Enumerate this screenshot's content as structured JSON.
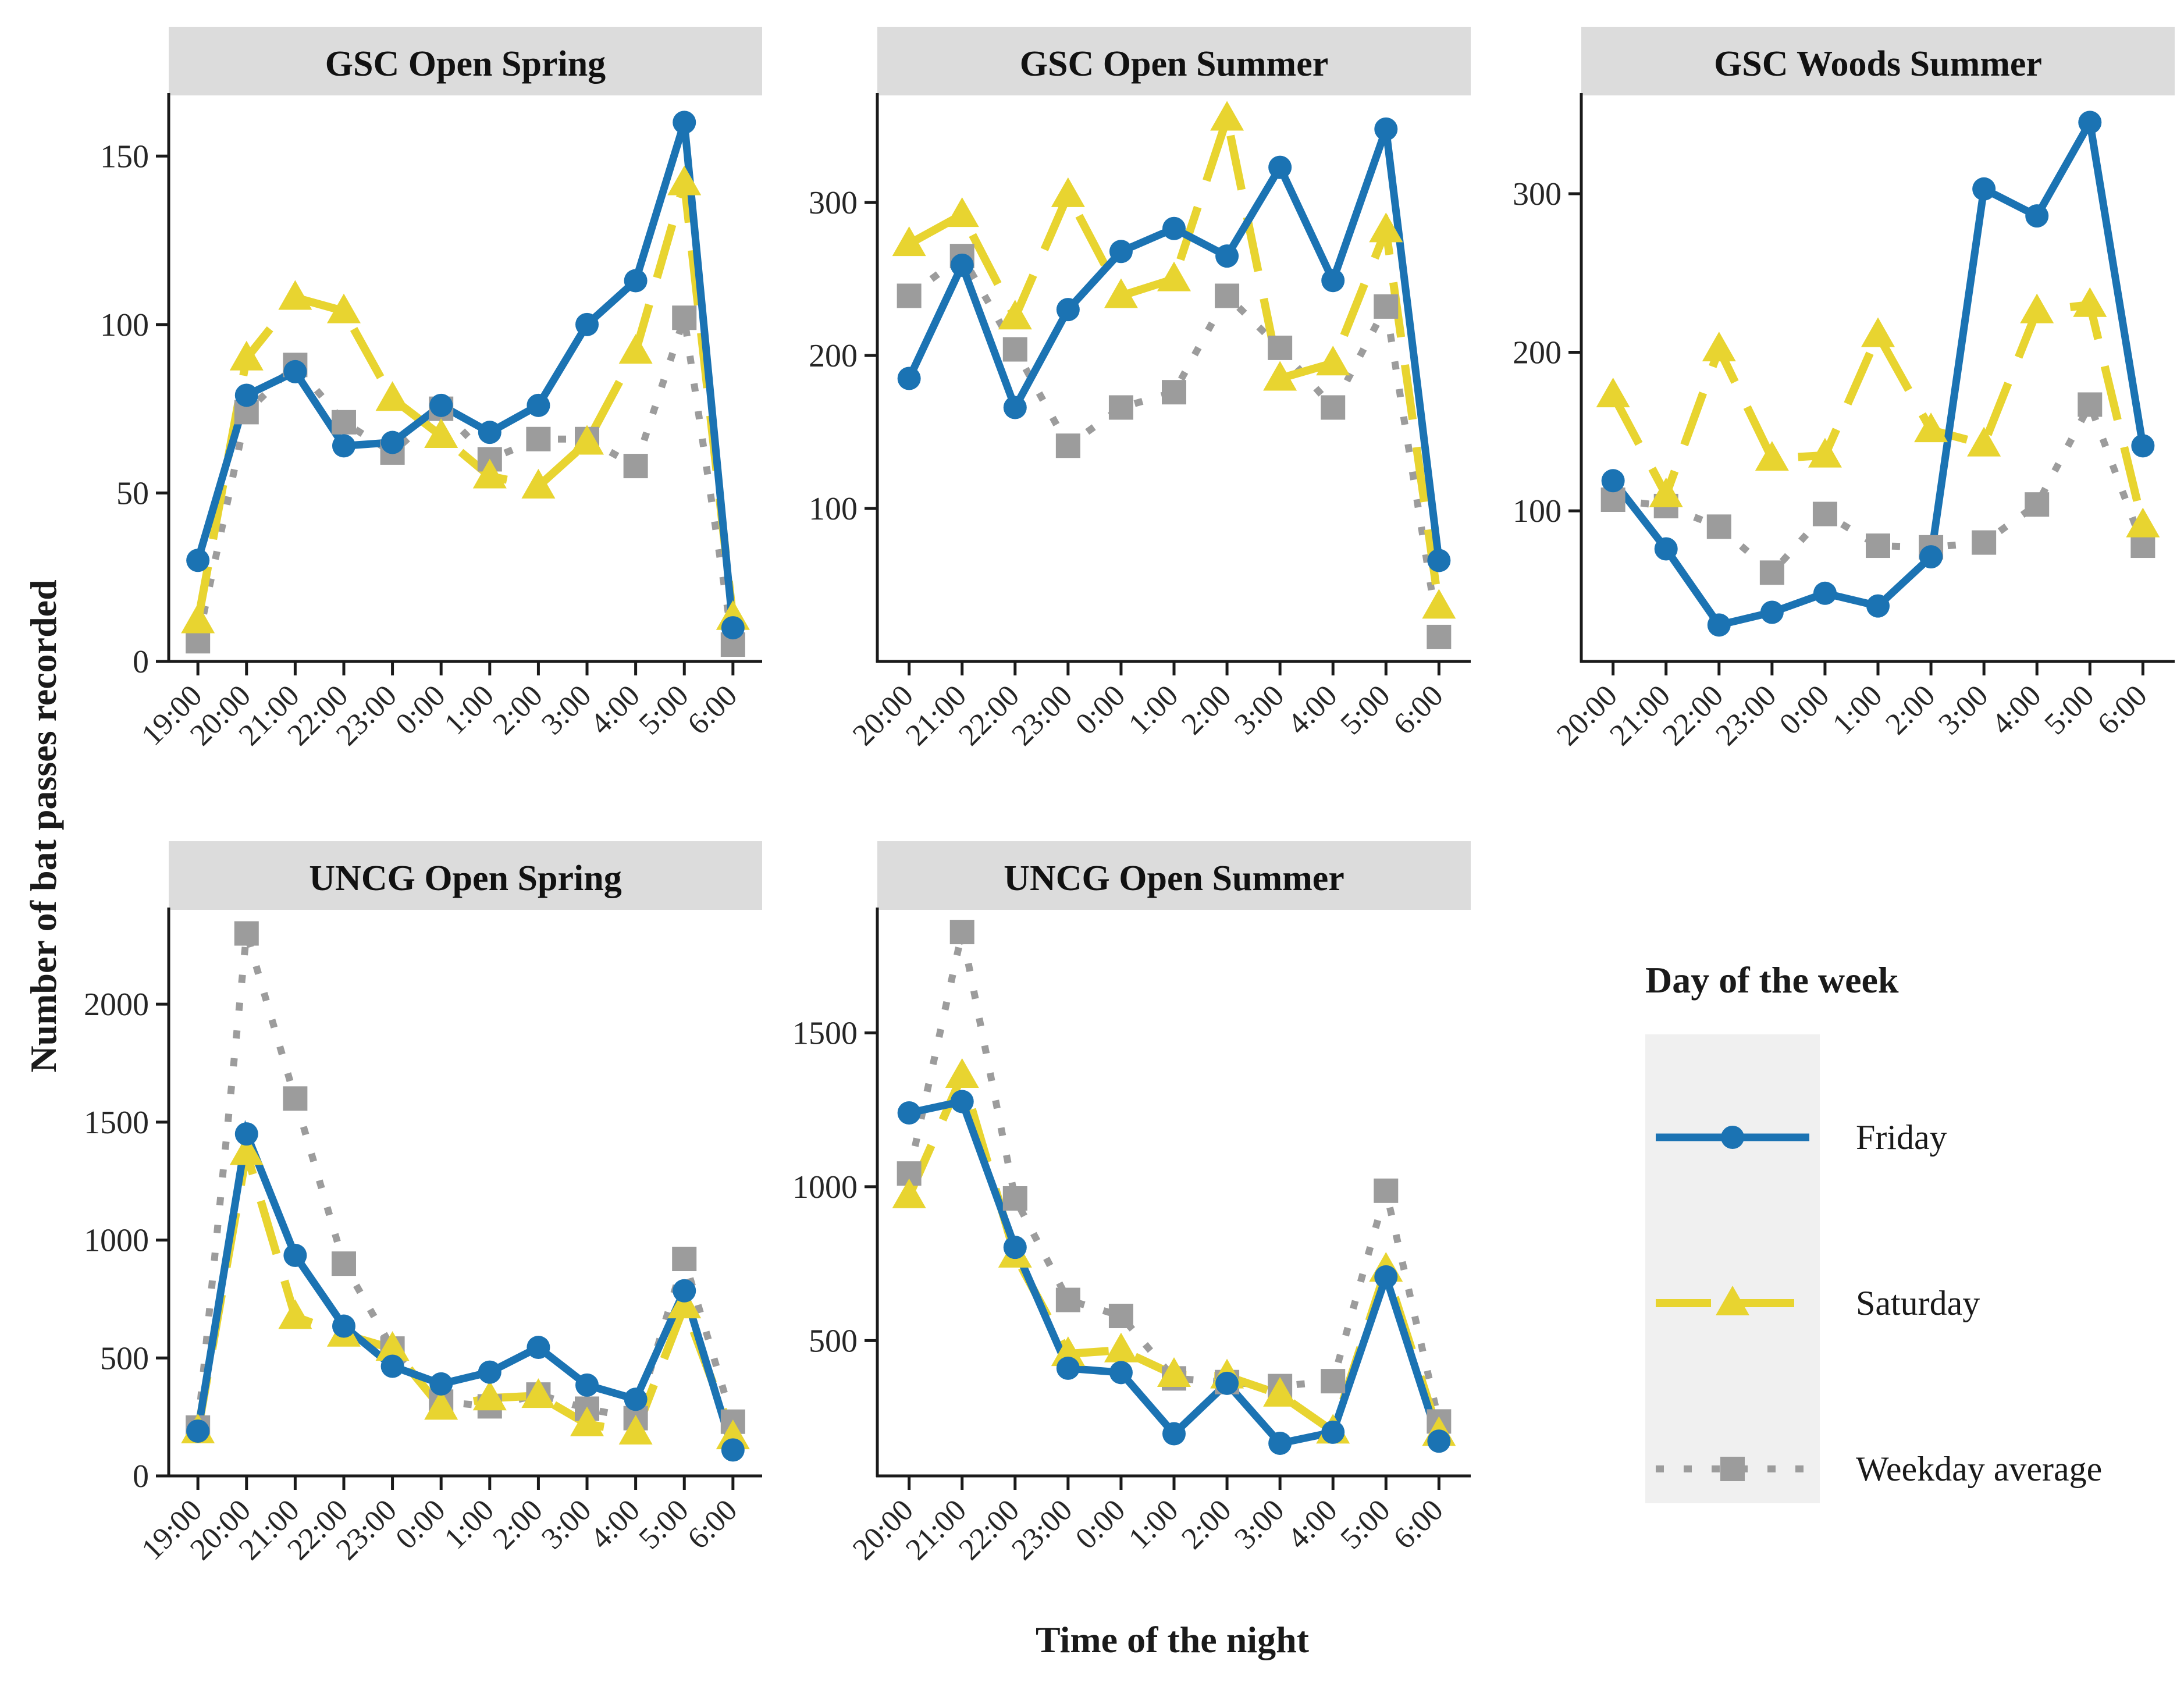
{
  "figure": {
    "y_axis_label": "Number of bat passes recorded",
    "x_axis_label": "Time of the night",
    "colors": {
      "friday": "#1B73B3",
      "saturday": "#E8D430",
      "weekday_average": "#9C9C9C",
      "strip_background": "#DCDCDC",
      "legend_key_background": "#F0F0F0",
      "axis": "#1A1A1A",
      "tick_label": "#262626"
    },
    "legend": {
      "title": "Day of the week",
      "entries": [
        {
          "label": "Friday",
          "color": "#1B73B3",
          "line": "solid",
          "marker": "circle"
        },
        {
          "label": "Saturday",
          "color": "#E8D430",
          "line": "dashed",
          "marker": "triangle"
        },
        {
          "label": "Weekday average",
          "color": "#9C9C9C",
          "line": "dotted",
          "marker": "square"
        }
      ]
    }
  },
  "chart_data": {
    "type": "line",
    "facet_layout": "2 rows x 3 columns, legend in empty bottom-right cell",
    "grid": "off",
    "panels": [
      {
        "title": "GSC Open Spring",
        "categories": [
          "19:00",
          "20:00",
          "21:00",
          "22:00",
          "23:00",
          "0:00",
          "1:00",
          "2:00",
          "3:00",
          "4:00",
          "5:00",
          "6:00"
        ],
        "yticks": [
          0,
          50,
          100,
          150
        ],
        "ylim": [
          0,
          168
        ],
        "series": [
          {
            "name": "Friday",
            "values": [
              30,
              79,
              86,
              64,
              65,
              76,
              68,
              76,
              100,
              113,
              160,
              10
            ]
          },
          {
            "name": "Saturday",
            "values": [
              12,
              90,
              108,
              104,
              78,
              67,
              55,
              52,
              65,
              92,
              142,
              13
            ]
          },
          {
            "name": "Weekday average",
            "values": [
              6,
              74,
              88,
              71,
              62,
              75,
              60,
              66,
              66,
              58,
              102,
              5
            ]
          }
        ]
      },
      {
        "title": "GSC Open Summer",
        "categories": [
          "20:00",
          "21:00",
          "22:00",
          "23:00",
          "0:00",
          "1:00",
          "2:00",
          "3:00",
          "4:00",
          "5:00",
          "6:00"
        ],
        "yticks": [
          100,
          200,
          300
        ],
        "ylim": [
          0,
          370
        ],
        "series": [
          {
            "name": "Friday",
            "values": [
              185,
              259,
              166,
              230,
              268,
              283,
              265,
              323,
              249,
              348,
              66
            ]
          },
          {
            "name": "Saturday",
            "values": [
              273,
              292,
              225,
              305,
              239,
              250,
              355,
              185,
              195,
              282,
              36
            ]
          },
          {
            "name": "Weekday average",
            "values": [
              239,
              265,
              204,
              141,
              166,
              176,
              239,
              205,
              166,
              232,
              16
            ]
          }
        ]
      },
      {
        "title": "GSC Woods Summer",
        "categories": [
          "20:00",
          "21:00",
          "22:00",
          "23:00",
          "0:00",
          "1:00",
          "2:00",
          "3:00",
          "4:00",
          "5:00",
          "6:00"
        ],
        "yticks": [
          100,
          200,
          300
        ],
        "ylim": [
          5,
          362
        ],
        "series": [
          {
            "name": "Friday",
            "values": [
              119,
              76,
              28,
              36,
              48,
              40,
              71,
              303,
              286,
              345,
              141
            ]
          },
          {
            "name": "Saturday",
            "values": [
              173,
              110,
              202,
              133,
              135,
              211,
              151,
              142,
              226,
              230,
              91
            ]
          },
          {
            "name": "Weekday average",
            "values": [
              107,
              103,
              90,
              61,
              98,
              78,
              77,
              80,
              104,
              167,
              78
            ]
          }
        ]
      },
      {
        "title": "UNCG Open Spring",
        "categories": [
          "19:00",
          "20:00",
          "21:00",
          "22:00",
          "23:00",
          "0:00",
          "1:00",
          "2:00",
          "3:00",
          "4:00",
          "5:00",
          "6:00"
        ],
        "yticks": [
          0,
          500,
          1000,
          1500,
          2000
        ],
        "ylim": [
          0,
          2400
        ],
        "series": [
          {
            "name": "Friday",
            "values": [
              190,
              1450,
              935,
              635,
              465,
              390,
              440,
              545,
              385,
              325,
              785,
              110
            ]
          },
          {
            "name": "Saturday",
            "values": [
              190,
              1370,
              675,
              600,
              540,
              290,
              330,
              340,
              220,
              185,
              720,
              165
            ]
          },
          {
            "name": "Weekday average",
            "values": [
              205,
              2300,
              1600,
              900,
              540,
              315,
              295,
              345,
              285,
              245,
              920,
              230
            ]
          }
        ]
      },
      {
        "title": "UNCG Open Summer",
        "categories": [
          "20:00",
          "21:00",
          "22:00",
          "23:00",
          "0:00",
          "1:00",
          "2:00",
          "3:00",
          "4:00",
          "5:00",
          "6:00"
        ],
        "yticks": [
          500,
          1000,
          1500
        ],
        "ylim": [
          60,
          1900
        ],
        "series": [
          {
            "name": "Friday",
            "values": [
              1240,
              1277,
              803,
              410,
              396,
              197,
              361,
              166,
              202,
              707,
              173
            ]
          },
          {
            "name": "Saturday",
            "values": [
              970,
              1361,
              777,
              457,
              469,
              389,
              384,
              325,
              205,
              731,
              197
            ]
          },
          {
            "name": "Weekday average",
            "values": [
              1043,
              1828,
              962,
              632,
              580,
              377,
              365,
              352,
              368,
              987,
              237
            ]
          }
        ]
      }
    ]
  }
}
